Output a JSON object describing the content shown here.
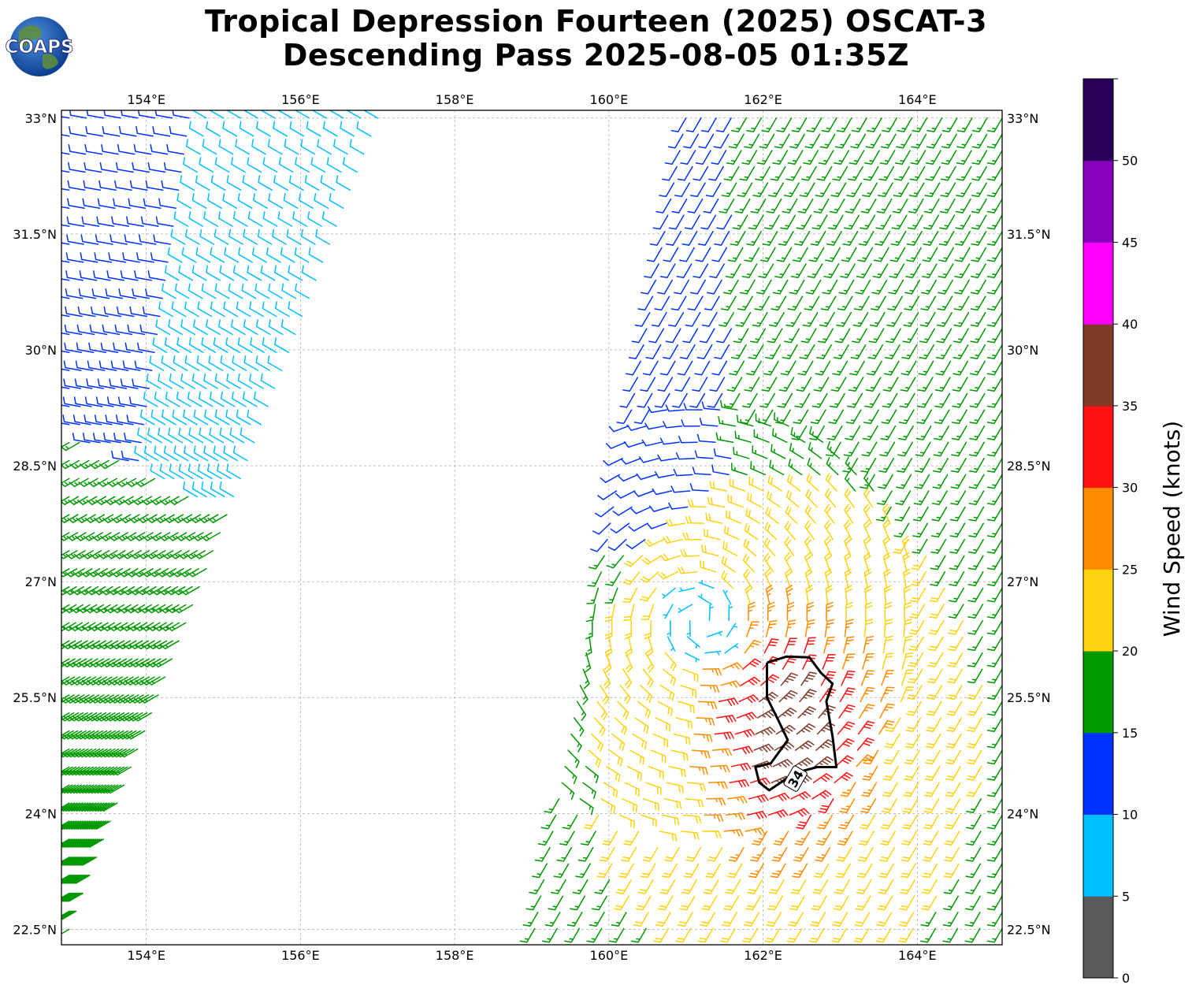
{
  "header": {
    "logo_text": "COAPS",
    "title_line1": "Tropical Depression Fourteen (2025) OSCAT-3",
    "title_line2": "Descending Pass 2025-08-05 01:35Z"
  },
  "map": {
    "lon_range": [
      152.9,
      165.1
    ],
    "lat_range": [
      22.3,
      33.1
    ],
    "lon_ticks": [
      {
        "value": 154,
        "label": "154°E"
      },
      {
        "value": 156,
        "label": "156°E"
      },
      {
        "value": 158,
        "label": "158°E"
      },
      {
        "value": 160,
        "label": "160°E"
      },
      {
        "value": 162,
        "label": "162°E"
      },
      {
        "value": 164,
        "label": "164°E"
      }
    ],
    "lat_ticks": [
      {
        "value": 33,
        "label": "33°N"
      },
      {
        "value": 31.5,
        "label": "31.5°N"
      },
      {
        "value": 30,
        "label": "30°N"
      },
      {
        "value": 28.5,
        "label": "28.5°N"
      },
      {
        "value": 27,
        "label": "27°N"
      },
      {
        "value": 25.5,
        "label": "25.5°N"
      },
      {
        "value": 24,
        "label": "24°N"
      },
      {
        "value": 22.5,
        "label": "22.5°N"
      }
    ],
    "gridlines": true,
    "contour_label": "34",
    "contour_34kt": [
      [
        162.05,
        25.95
      ],
      [
        162.3,
        26.03
      ],
      [
        162.6,
        26.02
      ],
      [
        162.75,
        25.82
      ],
      [
        162.9,
        25.68
      ],
      [
        162.82,
        25.45
      ],
      [
        162.9,
        25.0
      ],
      [
        162.95,
        24.6
      ],
      [
        162.7,
        24.6
      ],
      [
        162.4,
        24.52
      ],
      [
        162.2,
        24.38
      ],
      [
        162.08,
        24.3
      ],
      [
        161.95,
        24.4
      ],
      [
        161.9,
        24.6
      ],
      [
        162.1,
        24.65
      ],
      [
        162.32,
        24.95
      ],
      [
        162.2,
        25.2
      ],
      [
        162.05,
        25.5
      ],
      [
        162.05,
        25.7
      ],
      [
        162.05,
        25.95
      ]
    ]
  },
  "wind_swaths": [
    {
      "name": "western-swath",
      "corners": [
        [
          153.0,
          33.0
        ],
        [
          157.0,
          33.0
        ],
        [
          153.0,
          22.5
        ],
        [
          153.0,
          22.5
        ]
      ],
      "rows": 46,
      "cols": 19,
      "zones": [
        {
          "speed": 16,
          "direction_deg": 240,
          "lat_max": 28.9,
          "slope": 0.5
        },
        {
          "speed": 8,
          "direction_deg": 300,
          "lat_max": 33.0,
          "min_u": 0.42
        },
        {
          "speed": 12,
          "direction_deg": 280,
          "lat_max": 33.0
        }
      ]
    },
    {
      "name": "eastern-swath",
      "corners": [
        [
          161.0,
          33.0
        ],
        [
          165.1,
          33.0
        ],
        [
          159.0,
          22.3
        ],
        [
          165.1,
          22.3
        ]
      ],
      "rows": 52,
      "cols": 22,
      "zones": [
        {
          "speed": 18,
          "direction_deg": 210
        }
      ]
    }
  ],
  "wind_speed_bins_knots": [
    {
      "min": 0,
      "max": 5,
      "color": "#595959"
    },
    {
      "min": 5,
      "max": 10,
      "color": "#00bfff"
    },
    {
      "min": 10,
      "max": 15,
      "color": "#0033ff"
    },
    {
      "min": 15,
      "max": 20,
      "color": "#009900"
    },
    {
      "min": 20,
      "max": 25,
      "color": "#ffd10f"
    },
    {
      "min": 25,
      "max": 30,
      "color": "#ff8c00"
    },
    {
      "min": 30,
      "max": 35,
      "color": "#ff1111"
    },
    {
      "min": 35,
      "max": 40,
      "color": "#7f3a28"
    },
    {
      "min": 40,
      "max": 45,
      "color": "#ff00ff"
    },
    {
      "min": 45,
      "max": 50,
      "color": "#8800bb"
    },
    {
      "min": 50,
      "max": 55,
      "color": "#2b005c"
    }
  ],
  "colorbar": {
    "label": "Wind Speed (knots)",
    "ticks": [
      "0",
      "5",
      "10",
      "15",
      "20",
      "25",
      "30",
      "35",
      "40",
      "45",
      "50"
    ]
  },
  "storm_center": {
    "lon": 161.2,
    "lat": 26.5
  }
}
